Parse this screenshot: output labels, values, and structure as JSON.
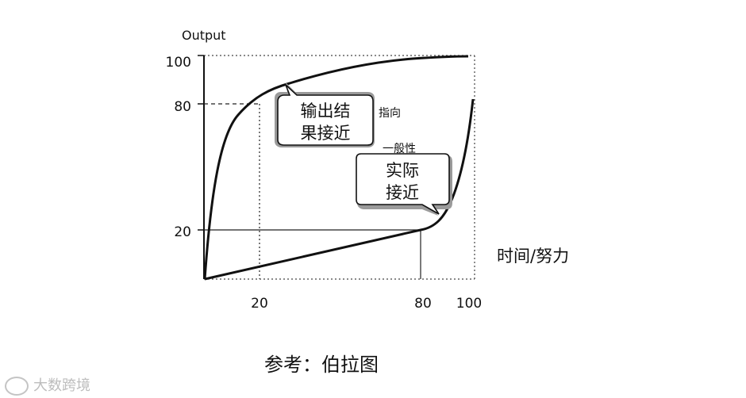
{
  "y_axis_label": "Output",
  "x_axis_label": "时间/努力",
  "y_ticks": [
    "100",
    "80",
    "20"
  ],
  "x_ticks": [
    "20",
    "80",
    "100"
  ],
  "callouts": {
    "upper": {
      "line1": "输出结",
      "line2": "果接近"
    },
    "lower": {
      "line1": "实际",
      "line2": "接近"
    }
  },
  "annotations": {
    "pointer": "指向",
    "general": "一般性"
  },
  "caption": "参考：伯拉图",
  "watermark": "大数跨境",
  "colors": {
    "curve": "#111111",
    "grid": "#555555",
    "background": "#ffffff"
  },
  "curves": {
    "ideal": {
      "description_points": [
        [
          0,
          0
        ],
        [
          3,
          50
        ],
        [
          8,
          75
        ],
        [
          20,
          80
        ],
        [
          45,
          93
        ],
        [
          100,
          100
        ]
      ]
    },
    "actual": {
      "description_points": [
        [
          0,
          0
        ],
        [
          80,
          20
        ],
        [
          92,
          35
        ],
        [
          100,
          80
        ]
      ]
    }
  }
}
